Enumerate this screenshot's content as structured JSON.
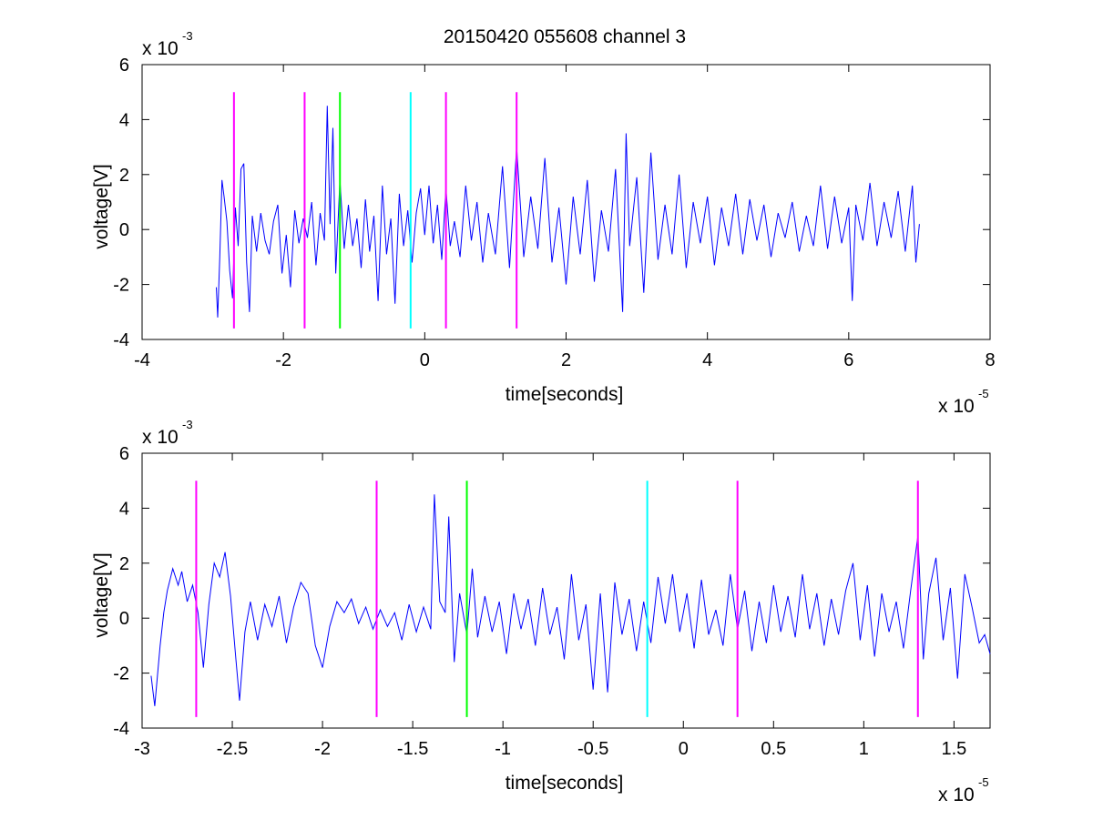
{
  "title": "20150420 055608 channel 3",
  "chart_data": [
    {
      "type": "line",
      "title": "20150420 055608 channel 3",
      "xlabel": "time[seconds]",
      "ylabel": "voltage[V]",
      "x_exponent": "x 10",
      "x_exponent_power": "-5",
      "y_exponent": "x 10",
      "y_exponent_power": "-3",
      "xlim": [
        -4,
        8
      ],
      "ylim": [
        -4,
        6
      ],
      "xticks": [
        -4,
        -2,
        0,
        2,
        4,
        6,
        8
      ],
      "xtick_labels": [
        "-4",
        "-2",
        "0",
        "2",
        "4",
        "6",
        "8"
      ],
      "yticks": [
        -4,
        -2,
        0,
        2,
        4,
        6
      ],
      "ytick_labels": [
        "-4",
        "-2",
        "0",
        "2",
        "4",
        "6"
      ],
      "grid": false,
      "signal": {
        "color": "#0000ff",
        "x_range": [
          -2.95,
          7.0
        ],
        "points": [
          [
            -2.95,
            -2.1
          ],
          [
            -2.93,
            -3.2
          ],
          [
            -2.9,
            -1.0
          ],
          [
            -2.87,
            1.8
          ],
          [
            -2.84,
            1.2
          ],
          [
            -2.8,
            0.3
          ],
          [
            -2.76,
            -1.5
          ],
          [
            -2.72,
            -2.5
          ],
          [
            -2.68,
            0.8
          ],
          [
            -2.64,
            -0.6
          ],
          [
            -2.6,
            2.2
          ],
          [
            -2.56,
            2.4
          ],
          [
            -2.52,
            -1.2
          ],
          [
            -2.48,
            -3.0
          ],
          [
            -2.44,
            0.5
          ],
          [
            -2.38,
            -0.8
          ],
          [
            -2.32,
            0.6
          ],
          [
            -2.26,
            -0.4
          ],
          [
            -2.2,
            -0.9
          ],
          [
            -2.14,
            0.3
          ],
          [
            -2.08,
            0.9
          ],
          [
            -2.02,
            -1.6
          ],
          [
            -1.96,
            -0.2
          ],
          [
            -1.9,
            -2.1
          ],
          [
            -1.84,
            0.7
          ],
          [
            -1.78,
            -0.5
          ],
          [
            -1.72,
            0.4
          ],
          [
            -1.66,
            -0.3
          ],
          [
            -1.6,
            1.0
          ],
          [
            -1.54,
            -1.3
          ],
          [
            -1.48,
            0.6
          ],
          [
            -1.42,
            -0.4
          ],
          [
            -1.38,
            4.5
          ],
          [
            -1.34,
            0.2
          ],
          [
            -1.3,
            3.7
          ],
          [
            -1.26,
            -1.6
          ],
          [
            -1.2,
            1.8
          ],
          [
            -1.14,
            -0.7
          ],
          [
            -1.08,
            0.9
          ],
          [
            -1.02,
            -0.6
          ],
          [
            -0.96,
            0.4
          ],
          [
            -0.9,
            -1.4
          ],
          [
            -0.84,
            1.1
          ],
          [
            -0.78,
            -0.8
          ],
          [
            -0.72,
            0.5
          ],
          [
            -0.66,
            -2.6
          ],
          [
            -0.6,
            1.6
          ],
          [
            -0.54,
            -0.9
          ],
          [
            -0.48,
            0.4
          ],
          [
            -0.42,
            -2.7
          ],
          [
            -0.36,
            1.3
          ],
          [
            -0.3,
            -0.6
          ],
          [
            -0.24,
            0.7
          ],
          [
            -0.18,
            -1.2
          ],
          [
            -0.12,
            0.6
          ],
          [
            -0.06,
            1.5
          ],
          [
            0.0,
            -0.2
          ],
          [
            0.06,
            1.6
          ],
          [
            0.12,
            -0.5
          ],
          [
            0.18,
            0.9
          ],
          [
            0.24,
            -1.1
          ],
          [
            0.3,
            1.5
          ],
          [
            0.36,
            -0.6
          ],
          [
            0.42,
            0.3
          ],
          [
            0.5,
            -1.0
          ],
          [
            0.58,
            1.6
          ],
          [
            0.66,
            -0.4
          ],
          [
            0.74,
            1.0
          ],
          [
            0.82,
            -1.2
          ],
          [
            0.9,
            0.6
          ],
          [
            1.0,
            -0.9
          ],
          [
            1.1,
            2.3
          ],
          [
            1.2,
            -1.4
          ],
          [
            1.3,
            3.0
          ],
          [
            1.4,
            -1.0
          ],
          [
            1.5,
            1.2
          ],
          [
            1.6,
            -0.7
          ],
          [
            1.7,
            2.6
          ],
          [
            1.8,
            -1.2
          ],
          [
            1.9,
            0.8
          ],
          [
            2.0,
            -2.0
          ],
          [
            2.1,
            1.2
          ],
          [
            2.2,
            -0.9
          ],
          [
            2.3,
            1.8
          ],
          [
            2.4,
            -1.9
          ],
          [
            2.5,
            0.7
          ],
          [
            2.6,
            -0.8
          ],
          [
            2.7,
            2.2
          ],
          [
            2.8,
            -3.0
          ],
          [
            2.85,
            3.5
          ],
          [
            2.9,
            -0.6
          ],
          [
            3.0,
            1.9
          ],
          [
            3.1,
            -2.3
          ],
          [
            3.2,
            2.8
          ],
          [
            3.3,
            -1.1
          ],
          [
            3.4,
            0.9
          ],
          [
            3.5,
            -0.9
          ],
          [
            3.6,
            2.0
          ],
          [
            3.7,
            -1.4
          ],
          [
            3.8,
            1.0
          ],
          [
            3.9,
            -0.5
          ],
          [
            4.0,
            1.2
          ],
          [
            4.1,
            -1.3
          ],
          [
            4.2,
            0.8
          ],
          [
            4.3,
            -0.6
          ],
          [
            4.4,
            1.3
          ],
          [
            4.5,
            -0.9
          ],
          [
            4.6,
            1.1
          ],
          [
            4.7,
            -0.4
          ],
          [
            4.8,
            0.9
          ],
          [
            4.9,
            -1.0
          ],
          [
            5.0,
            0.6
          ],
          [
            5.1,
            -0.3
          ],
          [
            5.2,
            1.0
          ],
          [
            5.3,
            -0.8
          ],
          [
            5.4,
            0.5
          ],
          [
            5.5,
            -0.6
          ],
          [
            5.6,
            1.6
          ],
          [
            5.7,
            -0.7
          ],
          [
            5.8,
            1.2
          ],
          [
            5.9,
            -0.5
          ],
          [
            6.0,
            0.8
          ],
          [
            6.05,
            -2.6
          ],
          [
            6.1,
            0.9
          ],
          [
            6.2,
            -0.4
          ],
          [
            6.3,
            1.7
          ],
          [
            6.4,
            -0.6
          ],
          [
            6.5,
            1.0
          ],
          [
            6.6,
            -0.3
          ],
          [
            6.7,
            1.4
          ],
          [
            6.8,
            -0.8
          ],
          [
            6.9,
            1.6
          ],
          [
            6.95,
            -1.2
          ],
          [
            7.0,
            0.2
          ]
        ]
      },
      "markers": [
        {
          "x": -2.7,
          "color": "#ff00ff",
          "y_range": [
            -3.6,
            5.0
          ]
        },
        {
          "x": -1.7,
          "color": "#ff00ff",
          "y_range": [
            -3.6,
            5.0
          ]
        },
        {
          "x": -1.2,
          "color": "#00ff00",
          "y_range": [
            -3.6,
            5.0
          ]
        },
        {
          "x": -0.2,
          "color": "#00ffff",
          "y_range": [
            -3.6,
            5.0
          ]
        },
        {
          "x": 0.3,
          "color": "#ff00ff",
          "y_range": [
            -3.6,
            5.0
          ]
        },
        {
          "x": 1.3,
          "color": "#ff00ff",
          "y_range": [
            -3.6,
            5.0
          ]
        }
      ]
    },
    {
      "type": "line",
      "title": "",
      "xlabel": "time[seconds]",
      "ylabel": "voltage[V]",
      "x_exponent": "x 10",
      "x_exponent_power": "-5",
      "y_exponent": "x 10",
      "y_exponent_power": "-3",
      "xlim": [
        -3.0,
        1.7
      ],
      "ylim": [
        -4,
        6
      ],
      "xticks": [
        -3,
        -2.5,
        -2,
        -1.5,
        -1,
        -0.5,
        0,
        0.5,
        1,
        1.5
      ],
      "xtick_labels": [
        "-3",
        "-2.5",
        "-2",
        "-1.5",
        "-1",
        "-0.5",
        "0",
        "0.5",
        "1",
        "1.5"
      ],
      "yticks": [
        -4,
        -2,
        0,
        2,
        4,
        6
      ],
      "ytick_labels": [
        "-4",
        "-2",
        "0",
        "2",
        "4",
        "6"
      ],
      "grid": false,
      "signal": {
        "color": "#0000ff",
        "x_range": [
          -2.95,
          1.7
        ],
        "points": [
          [
            -2.95,
            -2.1
          ],
          [
            -2.93,
            -3.2
          ],
          [
            -2.9,
            -1.0
          ],
          [
            -2.88,
            0.2
          ],
          [
            -2.86,
            1.0
          ],
          [
            -2.83,
            1.8
          ],
          [
            -2.8,
            1.2
          ],
          [
            -2.78,
            1.7
          ],
          [
            -2.75,
            0.6
          ],
          [
            -2.72,
            1.2
          ],
          [
            -2.69,
            0.2
          ],
          [
            -2.66,
            -1.8
          ],
          [
            -2.63,
            0.5
          ],
          [
            -2.6,
            2.0
          ],
          [
            -2.57,
            1.5
          ],
          [
            -2.54,
            2.4
          ],
          [
            -2.51,
            0.8
          ],
          [
            -2.48,
            -1.5
          ],
          [
            -2.46,
            -3.0
          ],
          [
            -2.43,
            -0.5
          ],
          [
            -2.4,
            0.6
          ],
          [
            -2.36,
            -0.8
          ],
          [
            -2.32,
            0.5
          ],
          [
            -2.28,
            -0.3
          ],
          [
            -2.24,
            0.8
          ],
          [
            -2.2,
            -0.9
          ],
          [
            -2.16,
            0.4
          ],
          [
            -2.12,
            1.3
          ],
          [
            -2.08,
            0.9
          ],
          [
            -2.04,
            -1.0
          ],
          [
            -2.0,
            -1.8
          ],
          [
            -1.96,
            -0.3
          ],
          [
            -1.92,
            0.6
          ],
          [
            -1.88,
            0.2
          ],
          [
            -1.84,
            0.7
          ],
          [
            -1.8,
            -0.2
          ],
          [
            -1.76,
            0.4
          ],
          [
            -1.72,
            -0.4
          ],
          [
            -1.68,
            0.3
          ],
          [
            -1.64,
            -0.3
          ],
          [
            -1.6,
            0.2
          ],
          [
            -1.56,
            -0.8
          ],
          [
            -1.52,
            0.5
          ],
          [
            -1.48,
            -0.5
          ],
          [
            -1.44,
            0.4
          ],
          [
            -1.4,
            -0.4
          ],
          [
            -1.38,
            4.5
          ],
          [
            -1.35,
            0.6
          ],
          [
            -1.32,
            0.2
          ],
          [
            -1.3,
            3.7
          ],
          [
            -1.27,
            -1.6
          ],
          [
            -1.24,
            0.9
          ],
          [
            -1.2,
            -0.6
          ],
          [
            -1.17,
            1.8
          ],
          [
            -1.14,
            -0.7
          ],
          [
            -1.1,
            0.8
          ],
          [
            -1.06,
            -0.5
          ],
          [
            -1.02,
            0.6
          ],
          [
            -0.98,
            -1.3
          ],
          [
            -0.94,
            0.9
          ],
          [
            -0.9,
            -0.4
          ],
          [
            -0.86,
            0.7
          ],
          [
            -0.82,
            -1.0
          ],
          [
            -0.78,
            1.1
          ],
          [
            -0.74,
            -0.6
          ],
          [
            -0.7,
            0.4
          ],
          [
            -0.66,
            -1.5
          ],
          [
            -0.62,
            1.6
          ],
          [
            -0.58,
            -0.8
          ],
          [
            -0.54,
            0.5
          ],
          [
            -0.5,
            -2.6
          ],
          [
            -0.46,
            0.9
          ],
          [
            -0.42,
            -2.7
          ],
          [
            -0.38,
            1.3
          ],
          [
            -0.34,
            -0.6
          ],
          [
            -0.3,
            0.7
          ],
          [
            -0.26,
            -1.2
          ],
          [
            -0.22,
            0.6
          ],
          [
            -0.18,
            -0.9
          ],
          [
            -0.14,
            1.5
          ],
          [
            -0.1,
            -0.2
          ],
          [
            -0.06,
            1.6
          ],
          [
            -0.02,
            -0.5
          ],
          [
            0.02,
            0.9
          ],
          [
            0.06,
            -1.1
          ],
          [
            0.1,
            1.4
          ],
          [
            0.14,
            -0.6
          ],
          [
            0.18,
            0.3
          ],
          [
            0.22,
            -1.0
          ],
          [
            0.26,
            1.6
          ],
          [
            0.3,
            -0.4
          ],
          [
            0.34,
            1.0
          ],
          [
            0.38,
            -1.2
          ],
          [
            0.42,
            0.6
          ],
          [
            0.46,
            -0.9
          ],
          [
            0.5,
            1.2
          ],
          [
            0.54,
            -0.5
          ],
          [
            0.58,
            0.8
          ],
          [
            0.62,
            -0.7
          ],
          [
            0.66,
            1.6
          ],
          [
            0.7,
            -0.4
          ],
          [
            0.74,
            0.9
          ],
          [
            0.78,
            -1.0
          ],
          [
            0.82,
            0.7
          ],
          [
            0.86,
            -0.6
          ],
          [
            0.9,
            1.0
          ],
          [
            0.94,
            2.0
          ],
          [
            0.98,
            -0.8
          ],
          [
            1.02,
            1.2
          ],
          [
            1.06,
            -1.4
          ],
          [
            1.1,
            0.9
          ],
          [
            1.14,
            -0.5
          ],
          [
            1.18,
            0.6
          ],
          [
            1.22,
            -1.1
          ],
          [
            1.26,
            1.0
          ],
          [
            1.3,
            3.0
          ],
          [
            1.33,
            -1.5
          ],
          [
            1.36,
            0.9
          ],
          [
            1.4,
            2.2
          ],
          [
            1.44,
            -0.8
          ],
          [
            1.48,
            1.1
          ],
          [
            1.52,
            -2.2
          ],
          [
            1.56,
            1.6
          ],
          [
            1.6,
            0.4
          ],
          [
            1.64,
            -0.9
          ],
          [
            1.67,
            -0.6
          ],
          [
            1.7,
            -1.3
          ]
        ]
      },
      "markers": [
        {
          "x": -2.7,
          "color": "#ff00ff",
          "y_range": [
            -3.6,
            5.0
          ]
        },
        {
          "x": -1.7,
          "color": "#ff00ff",
          "y_range": [
            -3.6,
            5.0
          ]
        },
        {
          "x": -1.2,
          "color": "#00ff00",
          "y_range": [
            -3.6,
            5.0
          ]
        },
        {
          "x": -0.2,
          "color": "#00ffff",
          "y_range": [
            -3.6,
            5.0
          ]
        },
        {
          "x": 0.3,
          "color": "#ff00ff",
          "y_range": [
            -3.6,
            5.0
          ]
        },
        {
          "x": 1.3,
          "color": "#ff00ff",
          "y_range": [
            -3.6,
            5.0
          ]
        }
      ]
    }
  ]
}
